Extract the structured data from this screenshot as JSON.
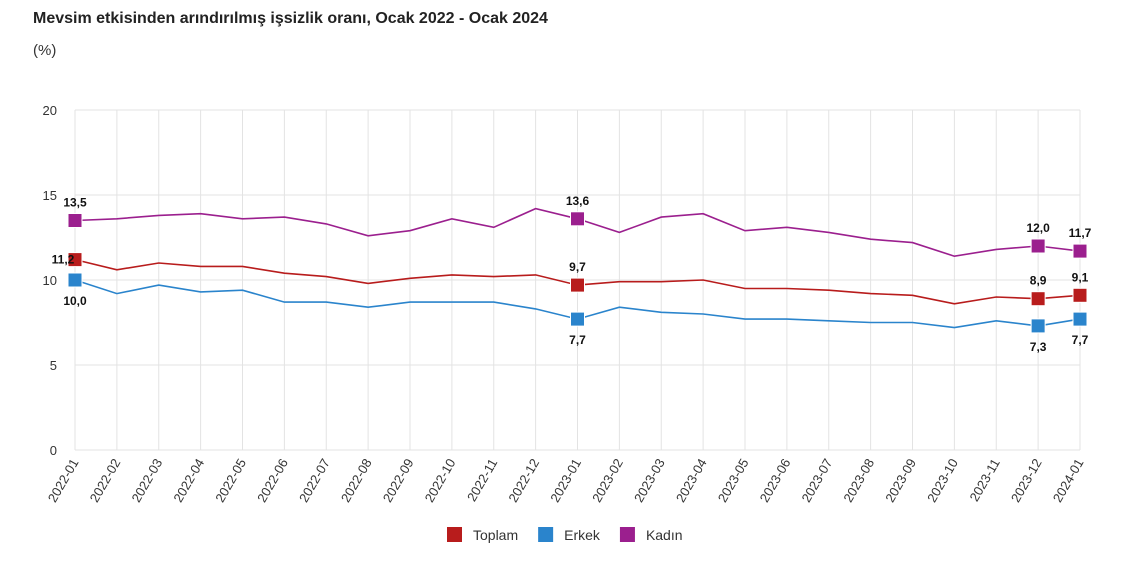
{
  "chart_data": {
    "type": "line",
    "title": "Mevsim etkisinden arındırılmış işsizlik oranı, Ocak 2022 - Ocak 2024",
    "ylabel": "(%)",
    "ylim": [
      0,
      20
    ],
    "yticks": [
      "0",
      "5",
      "10",
      "15",
      "20"
    ],
    "grid": true,
    "legend": "bottom",
    "x": [
      "2022-01",
      "2022-02",
      "2022-03",
      "2022-04",
      "2022-05",
      "2022-06",
      "2022-07",
      "2022-08",
      "2022-09",
      "2022-10",
      "2022-11",
      "2022-12",
      "2023-01",
      "2023-02",
      "2023-03",
      "2023-04",
      "2023-05",
      "2023-06",
      "2023-07",
      "2023-08",
      "2023-09",
      "2023-10",
      "2023-11",
      "2023-12",
      "2024-01"
    ],
    "series": [
      {
        "name": "Toplam",
        "color": "#b81c1c",
        "values": [
          11.2,
          10.6,
          11.0,
          10.8,
          10.8,
          10.4,
          10.2,
          9.8,
          10.1,
          10.3,
          10.2,
          10.3,
          9.7,
          9.9,
          9.9,
          10.0,
          9.5,
          9.5,
          9.4,
          9.2,
          9.1,
          8.6,
          9.0,
          8.9,
          9.1
        ],
        "labels": {
          "0": "11,2",
          "12": "9,7",
          "23": "8,9",
          "24": "9,1"
        }
      },
      {
        "name": "Erkek",
        "color": "#2a84cc",
        "values": [
          10.0,
          9.2,
          9.7,
          9.3,
          9.4,
          8.7,
          8.7,
          8.4,
          8.7,
          8.7,
          8.7,
          8.3,
          7.7,
          8.4,
          8.1,
          8.0,
          7.7,
          7.7,
          7.6,
          7.5,
          7.5,
          7.2,
          7.6,
          7.3,
          7.7
        ],
        "labels": {
          "0": "10,0",
          "12": "7,7",
          "23": "7,3",
          "24": "7,7"
        }
      },
      {
        "name": "Kadın",
        "color": "#9b1f8e",
        "values": [
          13.5,
          13.6,
          13.8,
          13.9,
          13.6,
          13.7,
          13.3,
          12.6,
          12.9,
          13.6,
          13.1,
          14.2,
          13.6,
          12.8,
          13.7,
          13.9,
          12.9,
          13.1,
          12.8,
          12.4,
          12.2,
          11.4,
          11.8,
          12.0,
          11.7
        ],
        "labels": {
          "0": "13,5",
          "12": "13,6",
          "23": "12,0",
          "24": "11,7"
        }
      }
    ]
  }
}
